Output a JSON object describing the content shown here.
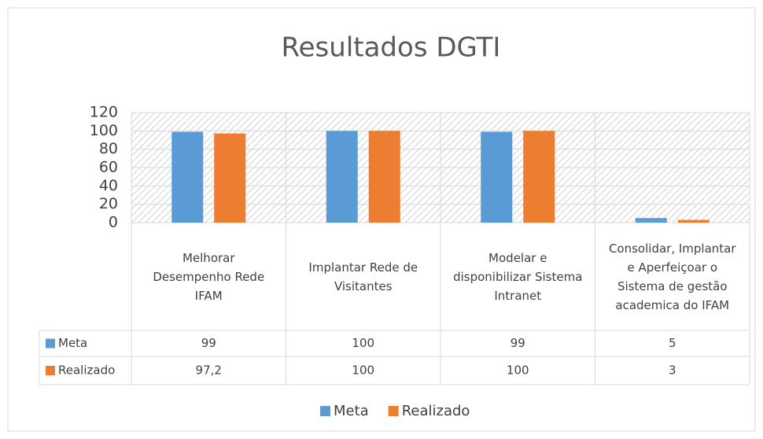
{
  "chart_data": {
    "type": "bar",
    "title": "Resultados DGTI",
    "categories": [
      "Melhorar Desempenho Rede IFAM",
      "Implantar Rede de Visitantes",
      "Modelar e disponibilizar Sistema Intranet",
      "Consolidar, Implantar e Aperfeiçoar o Sistema de gestão academica do IFAM"
    ],
    "series": [
      {
        "name": "Meta",
        "color": "#5b9bd5",
        "values": [
          99,
          100,
          99,
          5
        ]
      },
      {
        "name": "Realizado",
        "color": "#ed7d31",
        "values": [
          97.2,
          100,
          100,
          3
        ],
        "value_labels": [
          "97,2",
          "100",
          "100",
          "3"
        ]
      }
    ],
    "ylim": [
      0,
      120
    ],
    "yticks": [
      0,
      20,
      40,
      60,
      80,
      100,
      120
    ],
    "grid": true,
    "legend": "bottom"
  }
}
